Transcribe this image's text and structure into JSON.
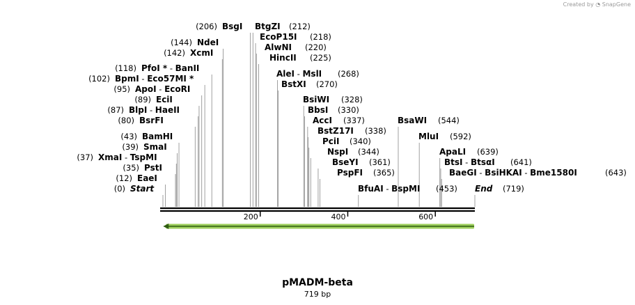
{
  "credit": {
    "created_by": "Created by",
    "brand": "SnapGene"
  },
  "plasmid": {
    "name": "pMADM-beta",
    "size_label": "719 bp",
    "length_bp": 719
  },
  "axis": {
    "ticks": [
      200,
      400,
      600
    ]
  },
  "feature": {
    "name": "",
    "start": 10,
    "end": 719,
    "direction": "reverse",
    "color": "#8cc63f"
  },
  "sites": [
    {
      "parts": [
        {
          "t": "Start",
          "s": "i"
        }
      ],
      "pos": "(0)",
      "bp": 0
    },
    {
      "parts": [
        {
          "t": "EaeI",
          "s": "b"
        }
      ],
      "pos": "(12)",
      "bp": 12
    },
    {
      "parts": [
        {
          "t": "PstI",
          "s": "b"
        }
      ],
      "pos": "(35)",
      "bp": 35
    },
    {
      "parts": [
        {
          "t": "XmaI",
          "s": "b"
        },
        {
          "t": " - ",
          "s": "n"
        },
        {
          "t": "TspMI",
          "s": "b"
        }
      ],
      "pos": "(37)",
      "bp": 37
    },
    {
      "parts": [
        {
          "t": "SmaI",
          "s": "b"
        }
      ],
      "pos": "(39)",
      "bp": 39
    },
    {
      "parts": [
        {
          "t": "BamHI",
          "s": "b"
        }
      ],
      "pos": "(43)",
      "bp": 43
    },
    {
      "parts": [
        {
          "t": "BsrFI",
          "s": "b"
        }
      ],
      "pos": "(80)",
      "bp": 80
    },
    {
      "parts": [
        {
          "t": "BlpI",
          "s": "b"
        },
        {
          "t": " - ",
          "s": "n"
        },
        {
          "t": "HaeII",
          "s": "b"
        }
      ],
      "pos": "(87)",
      "bp": 87
    },
    {
      "parts": [
        {
          "t": "EciI",
          "s": "b"
        }
      ],
      "pos": "(89)",
      "bp": 89
    },
    {
      "parts": [
        {
          "t": "ApoI",
          "s": "b"
        },
        {
          "t": " - ",
          "s": "n"
        },
        {
          "t": "EcoRI",
          "s": "b"
        }
      ],
      "pos": "(95)",
      "bp": 95
    },
    {
      "parts": [
        {
          "t": "BpmI",
          "s": "b"
        },
        {
          "t": " - ",
          "s": "n"
        },
        {
          "t": "Eco57MI *",
          "s": "b"
        }
      ],
      "pos": "(102)",
      "bp": 102
    },
    {
      "parts": [
        {
          "t": "PfoI *",
          "s": "b"
        },
        {
          "t": " - ",
          "s": "n"
        },
        {
          "t": "BanII",
          "s": "b"
        }
      ],
      "pos": "(118)",
      "bp": 118
    },
    {
      "parts": [
        {
          "t": "XcmI",
          "s": "b"
        }
      ],
      "pos": "(142)",
      "bp": 142
    },
    {
      "parts": [
        {
          "t": "NdeI",
          "s": "b"
        }
      ],
      "pos": "(144)",
      "bp": 144
    },
    {
      "parts": [
        {
          "t": "BsgI",
          "s": "b"
        }
      ],
      "pos": "(206)",
      "bp": 206
    },
    {
      "parts": [
        {
          "t": "BtgZI",
          "s": "b"
        }
      ],
      "pos": "(212)",
      "bp": 212
    },
    {
      "parts": [
        {
          "t": "EcoP15I",
          "s": "b"
        }
      ],
      "pos": "(218)",
      "bp": 218
    },
    {
      "parts": [
        {
          "t": "AlwNI",
          "s": "b"
        }
      ],
      "pos": "(220)",
      "bp": 220
    },
    {
      "parts": [
        {
          "t": "HincII",
          "s": "b"
        }
      ],
      "pos": "(225)",
      "bp": 225
    },
    {
      "parts": [
        {
          "t": "AleI",
          "s": "b"
        },
        {
          "t": " - ",
          "s": "n"
        },
        {
          "t": "MslI",
          "s": "b"
        }
      ],
      "pos": "(268)",
      "bp": 268
    },
    {
      "parts": [
        {
          "t": "BstXI",
          "s": "b"
        }
      ],
      "pos": "(270)",
      "bp": 270
    },
    {
      "parts": [
        {
          "t": "BsiWI",
          "s": "b"
        }
      ],
      "pos": "(328)",
      "bp": 328
    },
    {
      "parts": [
        {
          "t": "BbsI",
          "s": "b"
        }
      ],
      "pos": "(330)",
      "bp": 330
    },
    {
      "parts": [
        {
          "t": "AccI",
          "s": "b"
        }
      ],
      "pos": "(337)",
      "bp": 337
    },
    {
      "parts": [
        {
          "t": "BstZ17I",
          "s": "b"
        }
      ],
      "pos": "(338)",
      "bp": 338
    },
    {
      "parts": [
        {
          "t": "PciI",
          "s": "b"
        }
      ],
      "pos": "(340)",
      "bp": 340
    },
    {
      "parts": [
        {
          "t": "NspI",
          "s": "b"
        }
      ],
      "pos": "(344)",
      "bp": 344
    },
    {
      "parts": [
        {
          "t": "BseYI",
          "s": "b"
        }
      ],
      "pos": "(361)",
      "bp": 361
    },
    {
      "parts": [
        {
          "t": "PspFI",
          "s": "b"
        }
      ],
      "pos": "(365)",
      "bp": 365
    },
    {
      "parts": [
        {
          "t": "BfuAI",
          "s": "b"
        },
        {
          "t": " - ",
          "s": "n"
        },
        {
          "t": "BspMI",
          "s": "b"
        }
      ],
      "pos": "(453)",
      "bp": 453
    },
    {
      "parts": [
        {
          "t": "BsaWI",
          "s": "b"
        }
      ],
      "pos": "(544)",
      "bp": 544
    },
    {
      "parts": [
        {
          "t": "MluI",
          "s": "b"
        }
      ],
      "pos": "(592)",
      "bp": 592
    },
    {
      "parts": [
        {
          "t": "ApaLI",
          "s": "b"
        }
      ],
      "pos": "(639)",
      "bp": 639
    },
    {
      "parts": [
        {
          "t": "BtsI",
          "s": "b"
        },
        {
          "t": " - ",
          "s": "n"
        },
        {
          "t": "BtsαI",
          "s": "b"
        }
      ],
      "pos": "(641)",
      "bp": 641
    },
    {
      "parts": [
        {
          "t": "BaeGI",
          "s": "b"
        },
        {
          "t": " - ",
          "s": "n"
        },
        {
          "t": "BsiHKAI",
          "s": "b"
        },
        {
          "t": " - ",
          "s": "n"
        },
        {
          "t": "Bme1580I",
          "s": "b"
        }
      ],
      "pos": "(643)",
      "bp": 643
    },
    {
      "parts": [
        {
          "t": "End",
          "s": "i"
        }
      ],
      "pos": "(719)",
      "bp": 719
    }
  ]
}
